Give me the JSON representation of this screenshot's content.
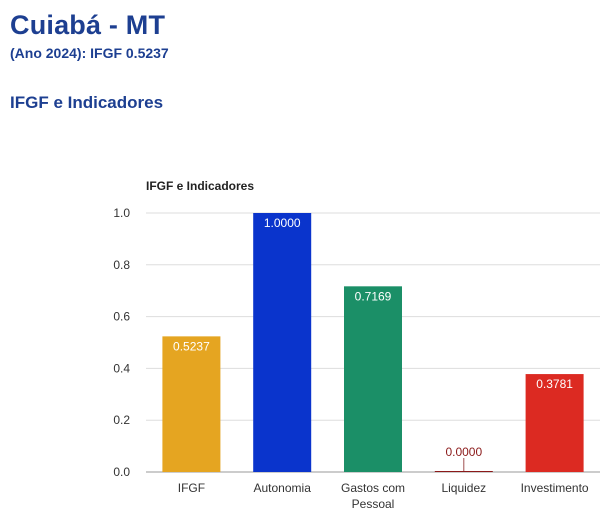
{
  "header": {
    "title": "Cuiabá - MT",
    "subtitle": "(Ano 2024): IFGF 0.5237",
    "section_title": "IFGF e Indicadores"
  },
  "chart_data": {
    "type": "bar",
    "title": "IFGF e Indicadores",
    "xlabel": "",
    "ylabel": "",
    "categories": [
      "IFGF",
      "Autonomia",
      "Gastos com Pessoal",
      "Liquidez",
      "Investimento"
    ],
    "category_lines": [
      [
        "IFGF"
      ],
      [
        "Autonomia"
      ],
      [
        "Gastos com",
        "Pessoal"
      ],
      [
        "Liquidez"
      ],
      [
        "Investimento"
      ]
    ],
    "values": [
      0.5237,
      1.0,
      0.7169,
      0.0,
      0.3781
    ],
    "data_labels": [
      "0.5237",
      "1.0000",
      "0.7169",
      "0.0000",
      "0.3781"
    ],
    "colors": [
      "#e5a521",
      "#0a34cc",
      "#1b8f67",
      "#8b1a1a",
      "#dc2a22"
    ],
    "yticks": [
      0.0,
      0.2,
      0.4,
      0.6,
      0.8,
      1.0
    ],
    "ytick_labels": [
      "0.0",
      "0.2",
      "0.4",
      "0.6",
      "0.8",
      "1.0"
    ],
    "ylim": [
      0,
      1.0
    ],
    "grid": true,
    "legend": false
  }
}
